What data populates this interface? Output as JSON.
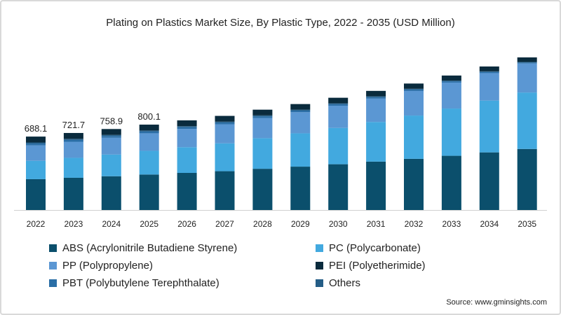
{
  "chart_data": {
    "type": "bar",
    "stacked": true,
    "title": "Plating on Plastics Market Size, By Plastic Type, 2022 - 2035 (USD Million)",
    "xlabel": "",
    "ylabel": "",
    "ylim": [
      0,
      1430
    ],
    "grid": false,
    "legend_position": "bottom",
    "categories": [
      "2022",
      "2023",
      "2024",
      "2025",
      "2026",
      "2027",
      "2028",
      "2029",
      "2030",
      "2031",
      "2032",
      "2033",
      "2034",
      "2035"
    ],
    "series": [
      {
        "name": "ABS (Acrylonitrile Butadiene Styrene)",
        "color": "#0b4f6c",
        "values": [
          289.0,
          302.0,
          316.4,
          332.4,
          347.6,
          363.6,
          386.2,
          406.3,
          428.9,
          453.3,
          479.5,
          507.9,
          540.0,
          572.0
        ]
      },
      {
        "name": "PC (Polycarbonate)",
        "color": "#42a9df",
        "values": [
          172.0,
          187.1,
          203.8,
          222.2,
          241.0,
          261.2,
          287.1,
          312.4,
          340.6,
          371.7,
          405.6,
          442.9,
          485.3,
          529.1
        ]
      },
      {
        "name": "PP (Polypropylene)",
        "color": "#5b97d3",
        "values": [
          144.5,
          150.5,
          157.0,
          164.3,
          171.2,
          178.4,
          188.8,
          197.8,
          208.0,
          219.0,
          230.6,
          243.3,
          257.6,
          271.7
        ]
      },
      {
        "name": "PBT (Polybutylene Terephthalate)",
        "color": "#2a6ea6",
        "values": [
          17.2,
          17.0,
          16.8,
          16.6,
          16.4,
          16.0,
          15.7,
          15.2,
          14.6,
          14.0,
          13.3,
          12.3,
          11.3,
          10.0
        ]
      },
      {
        "name": "Others",
        "color": "#245d86",
        "values": [
          10.3,
          10.2,
          10.0,
          9.8,
          9.5,
          9.2,
          8.9,
          8.4,
          8.0,
          7.5,
          6.9,
          6.2,
          5.2,
          4.3
        ]
      },
      {
        "name": "PEI (Polyetherimide)",
        "color": "#0a2b3d",
        "values": [
          55.0,
          55.0,
          54.9,
          54.8,
          54.3,
          53.6,
          53.5,
          52.7,
          51.8,
          50.7,
          49.2,
          47.5,
          45.5,
          42.9
        ]
      }
    ],
    "data_labels": [
      "688.1",
      "721.7",
      "758.9",
      "800.1"
    ]
  },
  "legend_order": [
    {
      "series": 0
    },
    {
      "series": 1
    },
    {
      "series": 2
    },
    {
      "series": 5
    },
    {
      "series": 3
    },
    {
      "series": 4
    }
  ],
  "source": "Source: www.gminsights.com"
}
